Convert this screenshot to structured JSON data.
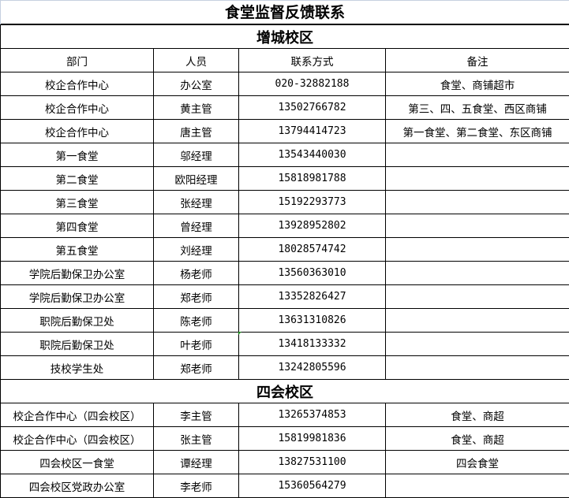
{
  "title": "食堂监督反馈联系",
  "columns": [
    "部门",
    "人员",
    "联系方式",
    "备注"
  ],
  "sections": [
    {
      "name": "增城校区",
      "rows": [
        [
          "校企合作中心",
          "办公室",
          "020-32882188",
          "食堂、商铺超市"
        ],
        [
          "校企合作中心",
          "黄主管",
          "13502766782",
          "第三、四、五食堂、西区商铺"
        ],
        [
          "校企合作中心",
          "唐主管",
          "13794414723",
          "第一食堂、第二食堂、东区商铺"
        ],
        [
          "第一食堂",
          "邬经理",
          "13543440030",
          ""
        ],
        [
          "第二食堂",
          "欧阳经理",
          "15818981788",
          ""
        ],
        [
          "第三食堂",
          "张经理",
          "15192293773",
          ""
        ],
        [
          "第四食堂",
          "曾经理",
          "13928952802",
          ""
        ],
        [
          "第五食堂",
          "刘经理",
          "18028574742",
          ""
        ],
        [
          "学院后勤保卫办公室",
          "杨老师",
          "13560363010",
          ""
        ],
        [
          "学院后勤保卫办公室",
          "郑老师",
          "13352826427",
          ""
        ],
        [
          "职院后勤保卫处",
          "陈老师",
          "13631310826",
          ""
        ],
        [
          "职院后勤保卫处",
          "叶老师",
          "13418133332",
          ""
        ],
        [
          "技校学生处",
          "郑老师",
          "13242805596",
          ""
        ]
      ]
    },
    {
      "name": "四会校区",
      "rows": [
        [
          "校企合作中心（四会校区）",
          "李主管",
          "13265374853",
          "食堂、商超"
        ],
        [
          "校企合作中心（四会校区）",
          "张主管",
          "15819981836",
          "食堂、商超"
        ],
        [
          "四会校区一食堂",
          "谭经理",
          "13827531100",
          "四会食堂"
        ],
        [
          "四会校区党政办公室",
          "李老师",
          "15360564279",
          ""
        ]
      ]
    }
  ]
}
